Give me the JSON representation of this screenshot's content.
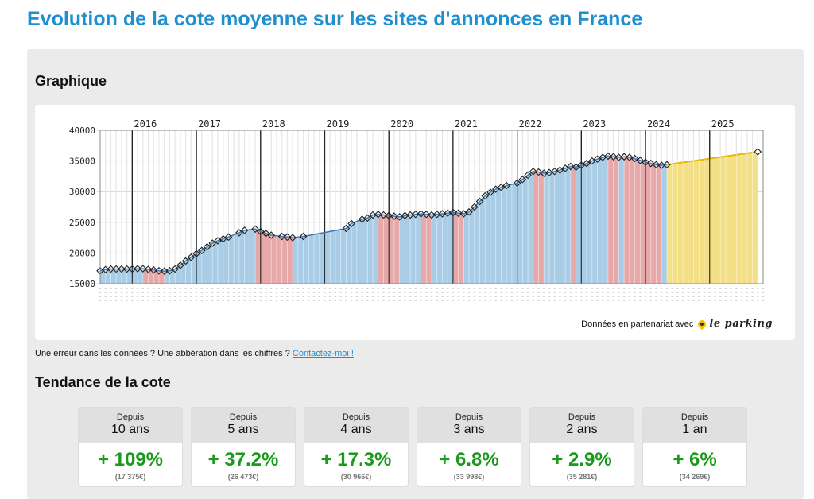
{
  "page": {
    "title": "Evolution de la cote moyenne sur les sites d'annonces en France"
  },
  "graph_section": {
    "title": "Graphique"
  },
  "partner": {
    "text": "Données en partenariat avec",
    "logo_text": "le parking",
    "logo_pin_color": "#f2c200"
  },
  "error_notice": {
    "text": "Une erreur dans les données ? Une abbération dans les chiffres ?",
    "link_label": "Contactez-moi !"
  },
  "trend_section": {
    "title": "Tendance de la cote",
    "cards": [
      {
        "since": "Depuis",
        "period": "10 ans",
        "change": "+ 109%",
        "price": "(17 375€)"
      },
      {
        "since": "Depuis",
        "period": "5 ans",
        "change": "+ 37.2%",
        "price": "(26 473€)"
      },
      {
        "since": "Depuis",
        "period": "4 ans",
        "change": "+ 17.3%",
        "price": "(30 966€)"
      },
      {
        "since": "Depuis",
        "period": "3 ans",
        "change": "+ 6.8%",
        "price": "(33 998€)"
      },
      {
        "since": "Depuis",
        "period": "2 ans",
        "change": "+ 2.9%",
        "price": "(35 281€)"
      },
      {
        "since": "Depuis",
        "period": "1 an",
        "change": "+ 6%",
        "price": "(34 269€)"
      }
    ]
  },
  "chart_data": {
    "type": "area",
    "title": "",
    "xlabel": "",
    "ylabel": "",
    "ylim": [
      15000,
      40000
    ],
    "yticks": [
      15000,
      20000,
      25000,
      30000,
      35000,
      40000
    ],
    "ytick_labels": [
      "15000",
      "20000",
      "25000",
      "30000",
      "35000",
      "40000"
    ],
    "year_labels": [
      "2016",
      "2017",
      "2018",
      "2019",
      "2020",
      "2021",
      "2022",
      "2023",
      "2024",
      "2025"
    ],
    "colors": {
      "rising": "#a9cde6",
      "falling": "#e6a8a8",
      "forecast": "#f3df86",
      "forecast_line": "#e6b800",
      "line": "#3a7ab8"
    },
    "grid": true,
    "series": [
      {
        "points": [
          [
            "2015-07",
            17100
          ],
          [
            "2015-08",
            17300
          ],
          [
            "2015-09",
            17400
          ],
          [
            "2015-10",
            17400
          ],
          [
            "2015-11",
            17400
          ],
          [
            "2015-12",
            17400
          ],
          [
            "2016-01",
            17400
          ],
          [
            "2016-02",
            17450
          ],
          [
            "2016-03",
            17450
          ],
          [
            "2016-04",
            17350
          ],
          [
            "2016-05",
            17250
          ],
          [
            "2016-06",
            17100
          ],
          [
            "2016-07",
            17050
          ],
          [
            "2016-08",
            17100
          ],
          [
            "2016-09",
            17400
          ],
          [
            "2016-10",
            18000
          ],
          [
            "2016-11",
            18700
          ],
          [
            "2016-12",
            19300
          ],
          [
            "2017-01",
            19900
          ],
          [
            "2017-02",
            20400
          ],
          [
            "2017-03",
            21000
          ],
          [
            "2017-04",
            21600
          ],
          [
            "2017-05",
            22000
          ],
          [
            "2017-06",
            22300
          ],
          [
            "2017-07",
            22600
          ],
          [
            "2017-09",
            23300
          ],
          [
            "2017-10",
            23700
          ],
          [
            "2017-12",
            23900
          ],
          [
            "2018-01",
            23500
          ],
          [
            "2018-02",
            23200
          ],
          [
            "2018-03",
            22900
          ],
          [
            "2018-05",
            22700
          ],
          [
            "2018-06",
            22600
          ],
          [
            "2018-07",
            22500
          ],
          [
            "2018-09",
            22700
          ],
          [
            "2019-05",
            24000
          ],
          [
            "2019-06",
            24800
          ],
          [
            "2019-08",
            25500
          ],
          [
            "2019-09",
            25700
          ],
          [
            "2019-10",
            26200
          ],
          [
            "2019-11",
            26300
          ],
          [
            "2019-12",
            26200
          ],
          [
            "2020-01",
            26100
          ],
          [
            "2020-02",
            26000
          ],
          [
            "2020-03",
            25900
          ],
          [
            "2020-04",
            26100
          ],
          [
            "2020-05",
            26200
          ],
          [
            "2020-06",
            26300
          ],
          [
            "2020-07",
            26400
          ],
          [
            "2020-08",
            26300
          ],
          [
            "2020-09",
            26200
          ],
          [
            "2020-10",
            26300
          ],
          [
            "2020-11",
            26400
          ],
          [
            "2020-12",
            26500
          ],
          [
            "2021-01",
            26600
          ],
          [
            "2021-02",
            26500
          ],
          [
            "2021-03",
            26400
          ],
          [
            "2021-04",
            26700
          ],
          [
            "2021-05",
            27500
          ],
          [
            "2021-06",
            28400
          ],
          [
            "2021-07",
            29300
          ],
          [
            "2021-08",
            29900
          ],
          [
            "2021-09",
            30400
          ],
          [
            "2021-10",
            30700
          ],
          [
            "2021-11",
            31000
          ],
          [
            "2022-01",
            31400
          ],
          [
            "2022-02",
            32000
          ],
          [
            "2022-03",
            32700
          ],
          [
            "2022-04",
            33300
          ],
          [
            "2022-05",
            33200
          ],
          [
            "2022-06",
            33000
          ],
          [
            "2022-07",
            33100
          ],
          [
            "2022-08",
            33300
          ],
          [
            "2022-09",
            33500
          ],
          [
            "2022-10",
            33800
          ],
          [
            "2022-11",
            34100
          ],
          [
            "2022-12",
            34000
          ],
          [
            "2023-01",
            34300
          ],
          [
            "2023-02",
            34600
          ],
          [
            "2023-03",
            35000
          ],
          [
            "2023-04",
            35300
          ],
          [
            "2023-05",
            35600
          ],
          [
            "2023-06",
            35800
          ],
          [
            "2023-07",
            35700
          ],
          [
            "2023-08",
            35600
          ],
          [
            "2023-09",
            35700
          ],
          [
            "2023-10",
            35600
          ],
          [
            "2023-11",
            35400
          ],
          [
            "2023-12",
            35100
          ],
          [
            "2024-01",
            34800
          ],
          [
            "2024-02",
            34600
          ],
          [
            "2024-03",
            34400
          ],
          [
            "2024-04",
            34300
          ],
          [
            "2024-05",
            34400
          ]
        ]
      },
      {
        "name": "forecast",
        "points": [
          [
            "2024-05",
            34400
          ],
          [
            "2025-10",
            36500
          ]
        ]
      }
    ]
  }
}
